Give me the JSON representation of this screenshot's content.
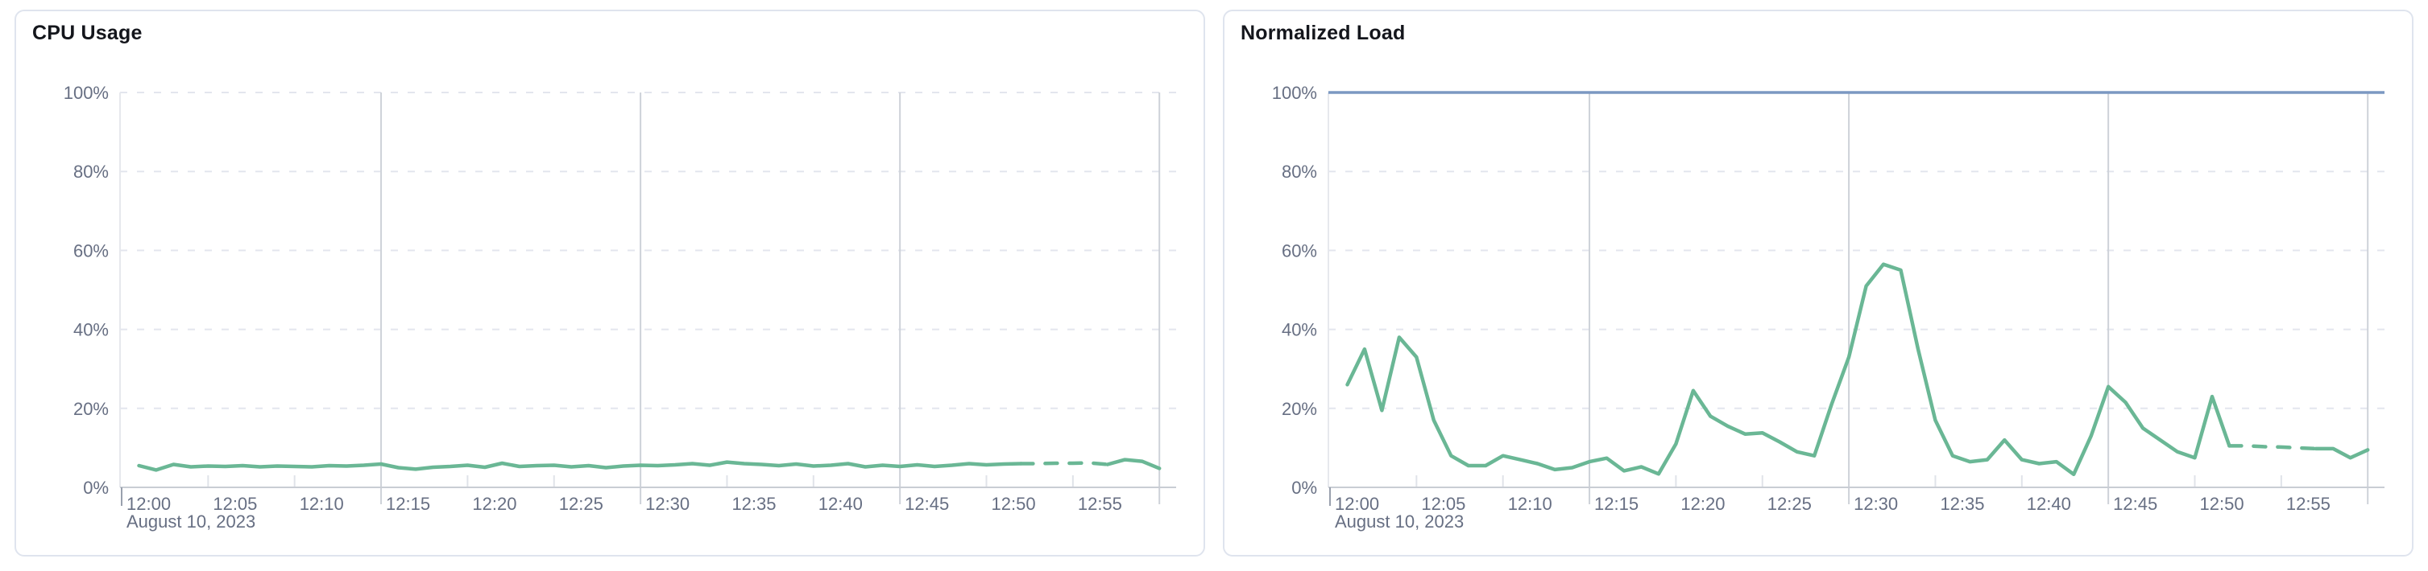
{
  "page": {
    "background_color": "#ffffff"
  },
  "colors": {
    "series_green": "#6ab795",
    "limit_blue": "#7b98c2",
    "grid_major_vertical": "#ced2d9",
    "grid_dashed_horizontal": "#e3e6ee",
    "axis_bottom": "#c9cdd4",
    "axis_left": "#e6e8ed",
    "first_tick": "#99a0ad",
    "minor_tick": "#e0e3e9",
    "axis_label": "#676f83",
    "panel_title": "#14161c",
    "panel_border": "#dfe4ee"
  },
  "chart_data": [
    {
      "type": "line",
      "title": "CPU Usage",
      "xlabel": "",
      "ylabel": "",
      "ylim": [
        0,
        100
      ],
      "y_tick_labels": [
        "0%",
        "20%",
        "40%",
        "60%",
        "80%",
        "100%"
      ],
      "x_tick_labels": [
        "12:00",
        "12:05",
        "12:10",
        "12:15",
        "12:20",
        "12:25",
        "12:30",
        "12:35",
        "12:40",
        "12:45",
        "12:50",
        "12:55"
      ],
      "x_axis_date_label": "August 10, 2023",
      "x_start": "12:00",
      "x_end": "13:00",
      "x_interval_minutes": 1,
      "x_first_data_minute": 1,
      "grid": {
        "horizontal": "dashed every 20%",
        "vertical_major_every_minutes": 15,
        "minor_tick_every_minutes": 5,
        "legend": "none"
      },
      "series": [
        {
          "name": "cpu usage (%)",
          "color": "#6ab795",
          "dashed_minutes": [
            52,
            57
          ],
          "values": [
            5.5,
            4.4,
            5.8,
            5.2,
            5.4,
            5.3,
            5.5,
            5.2,
            5.4,
            5.3,
            5.2,
            5.5,
            5.4,
            5.6,
            5.9,
            5.0,
            4.6,
            5.1,
            5.3,
            5.6,
            5.1,
            6.1,
            5.3,
            5.5,
            5.6,
            5.2,
            5.5,
            5.0,
            5.4,
            5.6,
            5.5,
            5.7,
            6.0,
            5.6,
            6.4,
            6.0,
            5.8,
            5.5,
            5.9,
            5.4,
            5.6,
            6.0,
            5.2,
            5.6,
            5.3,
            5.7,
            5.3,
            5.6,
            6.0,
            5.7,
            5.9,
            6.0,
            6.0,
            6.1,
            6.1,
            6.2,
            5.8,
            7.0,
            6.6,
            4.8
          ]
        }
      ]
    },
    {
      "type": "line",
      "title": "Normalized Load",
      "xlabel": "",
      "ylabel": "",
      "ylim": [
        0,
        100
      ],
      "y_tick_labels": [
        "0%",
        "20%",
        "40%",
        "60%",
        "80%",
        "100%"
      ],
      "x_tick_labels": [
        "12:00",
        "12:05",
        "12:10",
        "12:15",
        "12:20",
        "12:25",
        "12:30",
        "12:35",
        "12:40",
        "12:45",
        "12:50",
        "12:55"
      ],
      "x_axis_date_label": "August 10, 2023",
      "x_start": "12:00",
      "x_end": "13:00",
      "x_interval_minutes": 1,
      "x_first_data_minute": 1,
      "grid": {
        "horizontal": "dashed every 20%",
        "vertical_major_every_minutes": 15,
        "minor_tick_every_minutes": 5,
        "legend": "none"
      },
      "series": [
        {
          "name": "normalized load (%)",
          "color": "#6ab795",
          "dashed_minutes": [
            52,
            57
          ],
          "values": [
            26,
            35,
            19.5,
            38,
            33,
            17,
            8,
            5.5,
            5.5,
            8,
            7,
            6,
            4.5,
            5,
            6.5,
            7.4,
            4.2,
            5.2,
            3.4,
            11,
            24.5,
            18,
            15.5,
            13.5,
            13.8,
            11.5,
            9,
            8,
            21,
            33,
            51,
            56.5,
            55,
            35,
            17,
            8,
            6.5,
            7,
            12,
            7,
            6,
            6.5,
            3.3,
            13,
            25.5,
            21.5,
            15,
            12,
            9,
            7.5,
            23,
            10.5,
            10.5,
            10.3,
            10.2,
            10,
            9.8,
            9.8,
            7.5,
            9.5
          ]
        },
        {
          "name": "100% limit line",
          "color": "#7b98c2",
          "constant_value": 100
        }
      ]
    }
  ]
}
